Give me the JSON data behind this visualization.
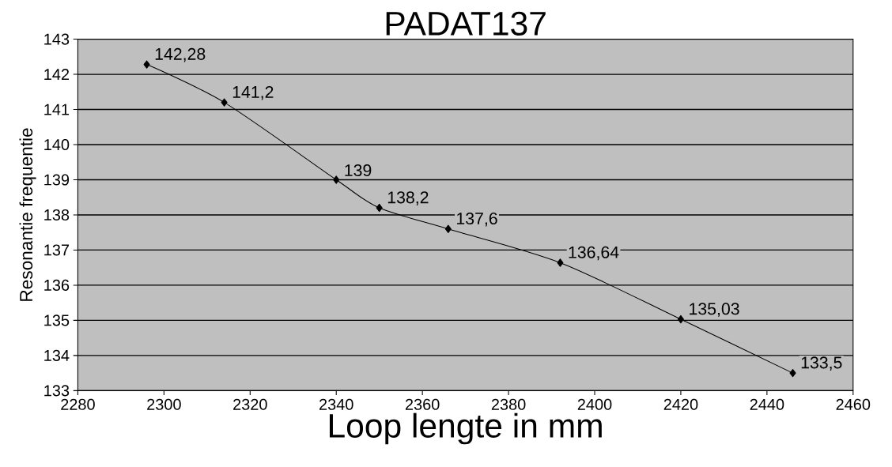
{
  "chart_data": {
    "type": "line",
    "title": "PADAT137",
    "xlabel": "Loop lengte in mm",
    "ylabel": "Resonantie frequentie",
    "x": [
      2296,
      2314,
      2340,
      2350,
      2366,
      2392,
      2420,
      2446
    ],
    "values": [
      142.28,
      141.2,
      139,
      138.2,
      137.6,
      136.64,
      135.03,
      133.5
    ],
    "value_labels": [
      "142,28",
      "141,2",
      "139",
      "138,2",
      "137,6",
      "136,64",
      "135,03",
      "133,5"
    ],
    "color": "#000000",
    "marker": "diamond",
    "line_style": "solid",
    "grid": "y",
    "xlim": [
      2280,
      2460
    ],
    "xticks": [
      2280,
      2300,
      2320,
      2340,
      2360,
      2380,
      2400,
      2420,
      2440,
      2460
    ],
    "ylim": [
      133,
      143
    ],
    "yticks": [
      133,
      134,
      135,
      136,
      137,
      138,
      139,
      140,
      141,
      142,
      143
    ]
  }
}
